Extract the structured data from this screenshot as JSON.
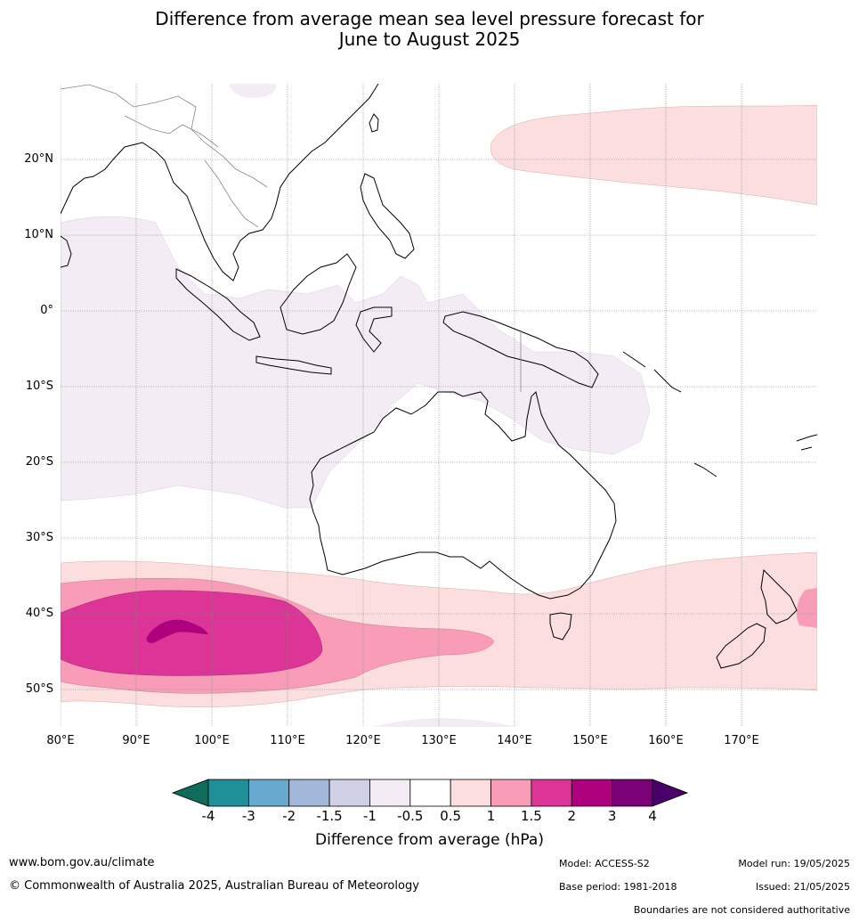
{
  "title_line1": "Difference from average mean sea level pressure forecast for",
  "title_line2": "June to August 2025",
  "map": {
    "lon_labels": [
      "80°E",
      "90°E",
      "100°E",
      "110°E",
      "120°E",
      "130°E",
      "140°E",
      "150°E",
      "160°E",
      "170°E"
    ],
    "lat_labels": [
      "20°N",
      "10°N",
      "0°",
      "10°S",
      "20°S",
      "30°S",
      "40°S",
      "50°S"
    ]
  },
  "colorbar": {
    "title": "Difference from average (hPa)",
    "ticks": [
      "-4",
      "-3",
      "-2",
      "-1.5",
      "-1",
      "-0.5",
      "0.5",
      "1",
      "1.5",
      "2",
      "3",
      "4"
    ],
    "colors": [
      "#0f6b5a",
      "#1f8f98",
      "#67a9cf",
      "#a2b8da",
      "#cfd0e6",
      "#f3ecf5",
      "#ffffff",
      "#fddede",
      "#f99cb8",
      "#dd3497",
      "#ae017e",
      "#7a0177",
      "#49006a"
    ]
  },
  "footer": {
    "url": "www.bom.gov.au/climate",
    "copyright": "© Commonwealth of Australia 2025, Australian Bureau of Meteorology",
    "model": "Model: ACCESS-S2",
    "base_period": "Base period: 1981-2018",
    "model_run": "Model run: 19/05/2025",
    "issued": "Issued: 21/05/2025",
    "boundaries": "Boundaries are not considered authoritative"
  }
}
